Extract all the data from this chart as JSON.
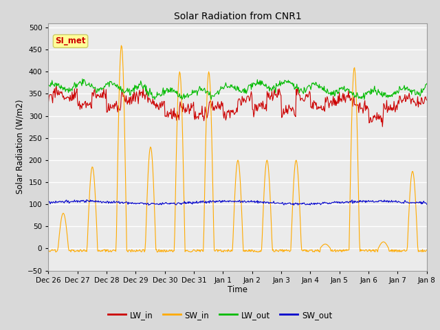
{
  "title": "Solar Radiation from CNR1",
  "xlabel": "Time",
  "ylabel": "Solar Radiation (W/m2)",
  "ylim": [
    -50,
    510
  ],
  "yticks": [
    -50,
    0,
    50,
    100,
    150,
    200,
    250,
    300,
    350,
    400,
    450,
    500
  ],
  "xtick_labels": [
    "Dec 26",
    "Dec 27",
    "Dec 28",
    "Dec 29",
    "Dec 30",
    "Dec 31",
    "Jan 1",
    "Jan 2",
    "Jan 3",
    "Jan 4",
    "Jan 5",
    "Jan 6",
    "Jan 7",
    "Jan 8"
  ],
  "colors": {
    "LW_in": "#cc0000",
    "SW_in": "#ffaa00",
    "LW_out": "#00bb00",
    "SW_out": "#0000cc"
  },
  "background_color": "#d9d9d9",
  "plot_bg_color": "#ebebeb",
  "grid_color": "#ffffff",
  "annotation_text": "SI_met",
  "annotation_color": "#cc0000",
  "annotation_bg": "#ffff99",
  "annotation_border": "#cccc66"
}
